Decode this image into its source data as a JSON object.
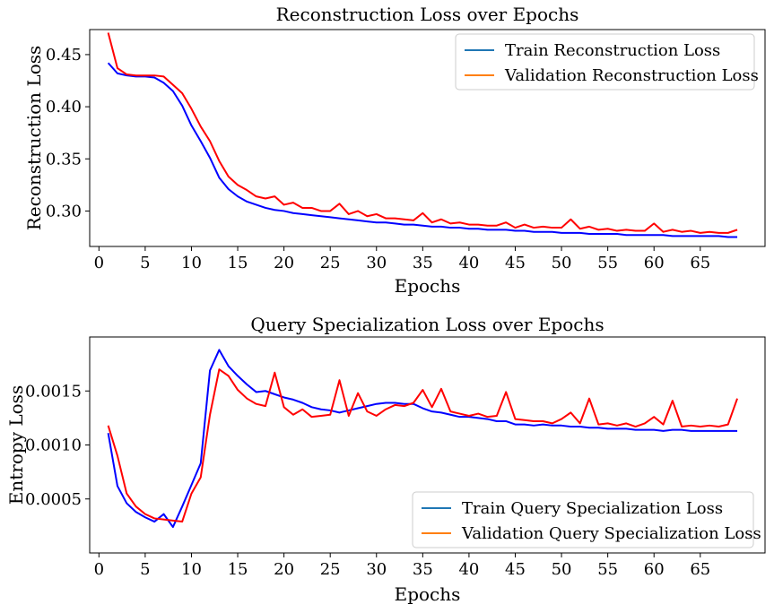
{
  "chart_data": [
    {
      "type": "line",
      "title": "Reconstruction Loss over Epochs",
      "xlabel": "Epochs",
      "ylabel": "Reconstruction Loss",
      "xlim": [
        -1,
        72
      ],
      "ylim": [
        0.266,
        0.474
      ],
      "xticks": [
        0,
        5,
        10,
        15,
        20,
        25,
        30,
        35,
        40,
        45,
        50,
        55,
        60,
        65
      ],
      "yticks": [
        0.3,
        0.35,
        0.4,
        0.45
      ],
      "ytick_labels": [
        "0.30",
        "0.35",
        "0.40",
        "0.45"
      ],
      "legend": "top-right",
      "x": [
        1,
        2,
        3,
        4,
        5,
        6,
        7,
        8,
        9,
        10,
        11,
        12,
        13,
        14,
        15,
        16,
        17,
        18,
        19,
        20,
        21,
        22,
        23,
        24,
        25,
        26,
        27,
        28,
        29,
        30,
        31,
        32,
        33,
        34,
        35,
        36,
        37,
        38,
        39,
        40,
        41,
        42,
        43,
        44,
        45,
        46,
        47,
        48,
        49,
        50,
        51,
        52,
        53,
        54,
        55,
        56,
        57,
        58,
        59,
        60,
        61,
        62,
        63,
        64,
        65,
        66,
        67,
        68,
        69
      ],
      "series": [
        {
          "name": "Train Reconstruction Loss",
          "legend_color": "#1f77b4",
          "line_color": "#0000ff",
          "values": [
            0.442,
            0.432,
            0.43,
            0.429,
            0.429,
            0.428,
            0.423,
            0.415,
            0.401,
            0.382,
            0.367,
            0.351,
            0.332,
            0.321,
            0.314,
            0.309,
            0.306,
            0.303,
            0.301,
            0.3,
            0.298,
            0.297,
            0.296,
            0.295,
            0.294,
            0.293,
            0.292,
            0.291,
            0.29,
            0.289,
            0.289,
            0.288,
            0.287,
            0.287,
            0.286,
            0.285,
            0.285,
            0.284,
            0.284,
            0.283,
            0.283,
            0.282,
            0.282,
            0.282,
            0.281,
            0.281,
            0.28,
            0.28,
            0.28,
            0.279,
            0.279,
            0.279,
            0.278,
            0.278,
            0.278,
            0.278,
            0.277,
            0.277,
            0.277,
            0.277,
            0.277,
            0.276,
            0.276,
            0.276,
            0.276,
            0.276,
            0.276,
            0.275,
            0.275
          ]
        },
        {
          "name": "Validation Reconstruction Loss",
          "legend_color": "#ff7f0e",
          "line_color": "#ff0000",
          "values": [
            0.471,
            0.437,
            0.431,
            0.43,
            0.43,
            0.43,
            0.429,
            0.421,
            0.413,
            0.398,
            0.381,
            0.367,
            0.348,
            0.333,
            0.325,
            0.32,
            0.314,
            0.312,
            0.314,
            0.306,
            0.308,
            0.303,
            0.303,
            0.3,
            0.3,
            0.307,
            0.297,
            0.3,
            0.295,
            0.297,
            0.293,
            0.293,
            0.292,
            0.291,
            0.298,
            0.289,
            0.292,
            0.288,
            0.289,
            0.287,
            0.287,
            0.286,
            0.286,
            0.289,
            0.284,
            0.287,
            0.284,
            0.285,
            0.284,
            0.284,
            0.292,
            0.283,
            0.285,
            0.282,
            0.283,
            0.281,
            0.282,
            0.281,
            0.281,
            0.288,
            0.28,
            0.282,
            0.28,
            0.281,
            0.279,
            0.28,
            0.279,
            0.279,
            0.282
          ]
        }
      ]
    },
    {
      "type": "line",
      "title": "Query Specialization Loss over Epochs",
      "xlabel": "Epochs",
      "ylabel": "Entropy Loss",
      "xlim": [
        -1,
        72
      ],
      "ylim": [
        0.0,
        0.002
      ],
      "xticks": [
        0,
        5,
        10,
        15,
        20,
        25,
        30,
        35,
        40,
        45,
        50,
        55,
        60,
        65
      ],
      "yticks": [
        0.0005,
        0.001,
        0.0015
      ],
      "ytick_labels": [
        "0.0005",
        "0.0010",
        "0.0015"
      ],
      "legend": "lower-right",
      "x": [
        1,
        2,
        3,
        4,
        5,
        6,
        7,
        8,
        9,
        10,
        11,
        12,
        13,
        14,
        15,
        16,
        17,
        18,
        19,
        20,
        21,
        22,
        23,
        24,
        25,
        26,
        27,
        28,
        29,
        30,
        31,
        32,
        33,
        34,
        35,
        36,
        37,
        38,
        39,
        40,
        41,
        42,
        43,
        44,
        45,
        46,
        47,
        48,
        49,
        50,
        51,
        52,
        53,
        54,
        55,
        56,
        57,
        58,
        59,
        60,
        61,
        62,
        63,
        64,
        65,
        66,
        67,
        68,
        69
      ],
      "series": [
        {
          "name": "Train Query Specialization Loss",
          "legend_color": "#1f77b4",
          "line_color": "#0000ff",
          "values": [
            0.00111,
            0.00062,
            0.00046,
            0.00038,
            0.00033,
            0.00029,
            0.00036,
            0.00024,
            0.00043,
            0.00063,
            0.00083,
            0.00169,
            0.00188,
            0.00173,
            0.00164,
            0.00156,
            0.00149,
            0.0015,
            0.00147,
            0.00144,
            0.00142,
            0.00139,
            0.00135,
            0.00133,
            0.00132,
            0.0013,
            0.00132,
            0.00134,
            0.00136,
            0.00138,
            0.00139,
            0.00139,
            0.00138,
            0.00138,
            0.00134,
            0.00131,
            0.0013,
            0.00128,
            0.00126,
            0.00126,
            0.00125,
            0.00124,
            0.00122,
            0.00122,
            0.00119,
            0.00119,
            0.00118,
            0.00119,
            0.00118,
            0.00118,
            0.00117,
            0.00117,
            0.00116,
            0.00116,
            0.00115,
            0.00115,
            0.00115,
            0.00114,
            0.00114,
            0.00114,
            0.00113,
            0.00114,
            0.00114,
            0.00113,
            0.00113,
            0.00113,
            0.00113,
            0.00113,
            0.00113
          ]
        },
        {
          "name": "Validation Query Specialization Loss",
          "legend_color": "#ff7f0e",
          "line_color": "#ff0000",
          "values": [
            0.00118,
            0.0009,
            0.00055,
            0.00043,
            0.00036,
            0.00032,
            0.00031,
            0.0003,
            0.00029,
            0.00055,
            0.0007,
            0.00128,
            0.0017,
            0.00164,
            0.00151,
            0.00143,
            0.00138,
            0.00136,
            0.00167,
            0.00135,
            0.00128,
            0.00133,
            0.00126,
            0.00127,
            0.00128,
            0.0016,
            0.00127,
            0.00148,
            0.00131,
            0.00127,
            0.00133,
            0.00137,
            0.00136,
            0.00139,
            0.00151,
            0.00135,
            0.00152,
            0.00131,
            0.00129,
            0.00127,
            0.00129,
            0.00126,
            0.00127,
            0.00149,
            0.00124,
            0.00123,
            0.00122,
            0.00122,
            0.0012,
            0.00124,
            0.0013,
            0.0012,
            0.00143,
            0.00119,
            0.0012,
            0.00118,
            0.0012,
            0.00117,
            0.0012,
            0.00126,
            0.00119,
            0.00141,
            0.00117,
            0.00118,
            0.00117,
            0.00118,
            0.00117,
            0.00119,
            0.00143
          ]
        }
      ]
    }
  ]
}
